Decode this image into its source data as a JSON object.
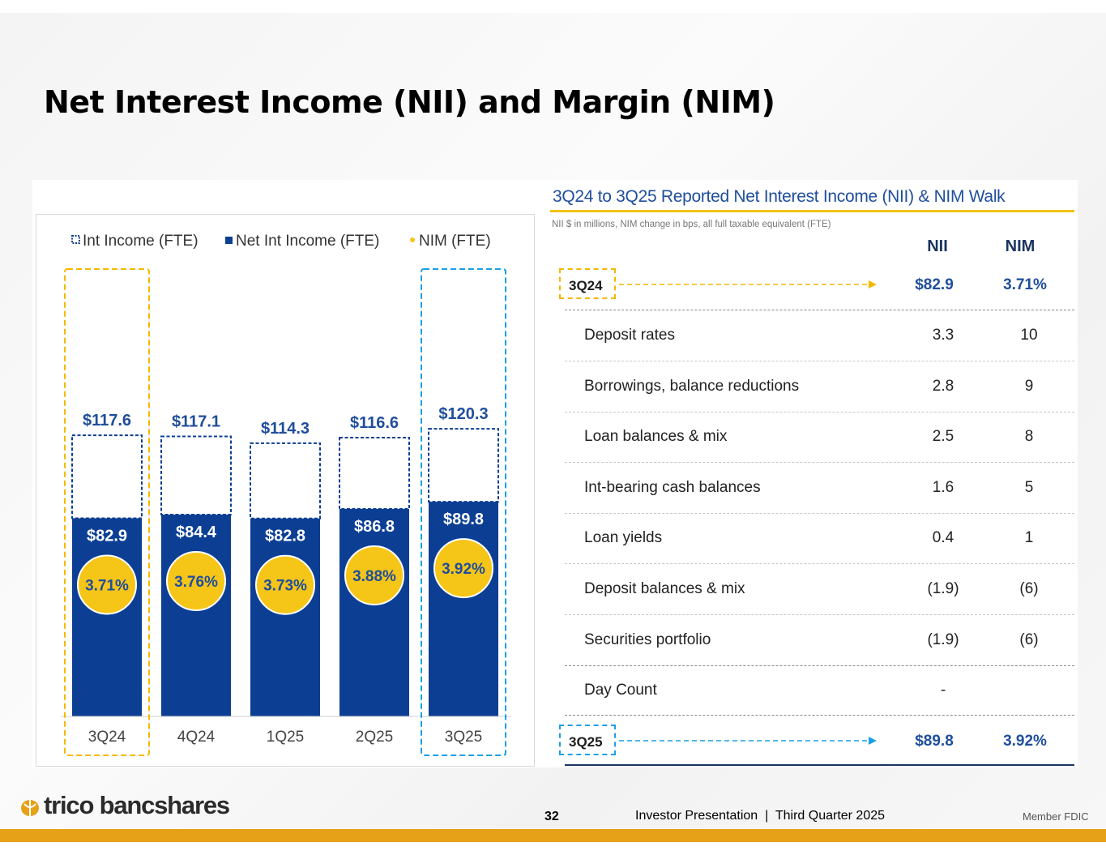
{
  "title": "Net Interest Income (NII) and Margin (NIM)",
  "colors": {
    "navy": "#0c3f94",
    "gold": "#f5c518",
    "amber": "#e6a119",
    "cyan": "#1aa0e6"
  },
  "chart_data": {
    "type": "bar",
    "legend": [
      "Int Income (FTE)",
      "Net Int Income (FTE)",
      "NIM (FTE)"
    ],
    "categories": [
      "3Q24",
      "4Q24",
      "1Q25",
      "2Q25",
      "3Q25"
    ],
    "series": [
      {
        "name": "Int Income (FTE)",
        "values": [
          117.6,
          117.1,
          114.3,
          116.6,
          120.3
        ],
        "labels": [
          "$117.6",
          "$117.1",
          "$114.3",
          "$116.6",
          "$120.3"
        ]
      },
      {
        "name": "Net Int Income (FTE)",
        "values": [
          82.9,
          84.4,
          82.8,
          86.8,
          89.8
        ],
        "labels": [
          "$82.9",
          "$84.4",
          "$82.8",
          "$86.8",
          "$89.8"
        ]
      },
      {
        "name": "NIM (FTE)",
        "values": [
          3.71,
          3.76,
          3.73,
          3.88,
          3.92
        ],
        "labels": [
          "3.71%",
          "3.76%",
          "3.73%",
          "3.88%",
          "3.92%"
        ]
      }
    ],
    "ylim": [
      0,
      130
    ],
    "highlighted": [
      "3Q24",
      "3Q25"
    ]
  },
  "walk": {
    "title": "3Q24 to 3Q25 Reported Net Interest Income (NII) & NIM Walk",
    "subtitle": "NII $ in millions, NIM change in bps, all full taxable equivalent (FTE)",
    "col_nii": "NII",
    "col_nim": "NIM",
    "start": {
      "label": "3Q24",
      "nii": "$82.9",
      "nim": "3.71%"
    },
    "rows": [
      {
        "label": "Deposit rates",
        "nii": "3.3",
        "nim": "10"
      },
      {
        "label": "Borrowings, balance reductions",
        "nii": "2.8",
        "nim": "9"
      },
      {
        "label": "Loan balances & mix",
        "nii": "2.5",
        "nim": "8"
      },
      {
        "label": "Int-bearing cash balances",
        "nii": "1.6",
        "nim": "5"
      },
      {
        "label": "Loan yields",
        "nii": "0.4",
        "nim": "1"
      },
      {
        "label": "Deposit balances & mix",
        "nii": "(1.9)",
        "nim": "(6)"
      },
      {
        "label": "Securities portfolio",
        "nii": "(1.9)",
        "nim": "(6)"
      },
      {
        "label": "Day Count",
        "nii": "-",
        "nim": ""
      }
    ],
    "end": {
      "label": "3Q25",
      "nii": "$89.8",
      "nim": "3.92%"
    }
  },
  "footer": {
    "logo": "trico bancshares",
    "page": "32",
    "text": "Investor Presentation  |  Third Quarter 2025",
    "fdic": "Member FDIC"
  }
}
